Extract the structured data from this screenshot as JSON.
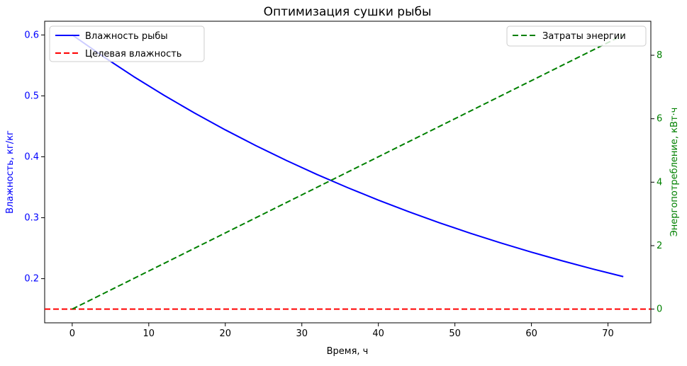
{
  "chart_data": {
    "type": "line",
    "title": "Оптимизация сушки рыбы",
    "xlabel": "Время, ч",
    "ylabel_left": "Влажность, кг/кг",
    "ylabel_right": "Энергопотребление, кВт·ч",
    "xlim": [
      -3.6,
      75.6
    ],
    "ylim_left": [
      0.1275,
      0.6225
    ],
    "ylim_right": [
      -0.432,
      9.072
    ],
    "x_ticks": [
      0,
      10,
      20,
      30,
      40,
      50,
      60,
      70
    ],
    "y_left_ticks": [
      0.2,
      0.3,
      0.4,
      0.5,
      0.6
    ],
    "y_right_ticks": [
      0,
      2,
      4,
      6,
      8
    ],
    "grid": false,
    "colors": {
      "moisture": "#0000ff",
      "target": "#ff0000",
      "energy": "#008000",
      "axis": "#000000"
    },
    "series": [
      {
        "name": "Влажность рыбы",
        "axis": "left",
        "style": "solid",
        "color": "#0000ff",
        "x": [
          0,
          4,
          8,
          12,
          16,
          20,
          24,
          28,
          32,
          36,
          40,
          44,
          48,
          52,
          56,
          60,
          64,
          68,
          72
        ],
        "y": [
          0.6,
          0.565,
          0.5319,
          0.5009,
          0.4717,
          0.4442,
          0.4183,
          0.3939,
          0.3709,
          0.3493,
          0.3289,
          0.3097,
          0.2916,
          0.2746,
          0.2586,
          0.2435,
          0.2293,
          0.2159,
          0.2033
        ]
      },
      {
        "name": "Целевая влажность",
        "axis": "left",
        "style": "dashed",
        "color": "#ff0000",
        "y": 0.15
      },
      {
        "name": "Затраты энергии",
        "axis": "right",
        "style": "dashed",
        "color": "#008000",
        "x": [
          0,
          72
        ],
        "y": [
          0,
          8.64
        ]
      }
    ],
    "legend_left": {
      "placement": "top-left",
      "items": [
        "Влажность рыбы",
        "Целевая влажность"
      ]
    },
    "legend_right": {
      "placement": "top-right",
      "items": [
        "Затраты энергии"
      ]
    }
  }
}
